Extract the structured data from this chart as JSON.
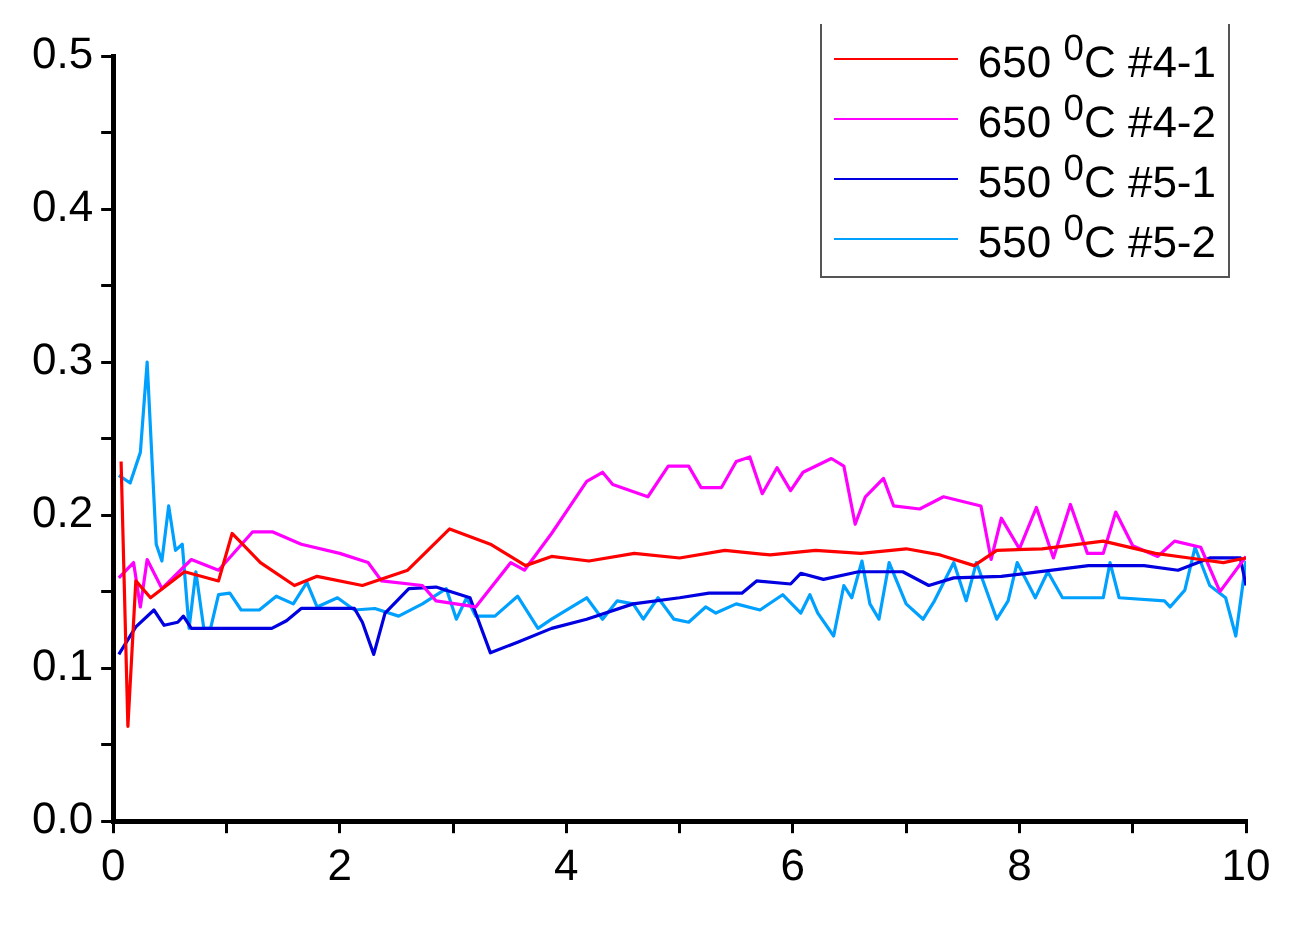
{
  "chart_data": {
    "type": "line",
    "xlim": [
      0,
      10
    ],
    "ylim": [
      0,
      0.5
    ],
    "xticks": [
      0,
      {
        "value": 1,
        "label": null
      },
      2,
      {
        "value": 3,
        "label": null
      },
      4,
      {
        "value": 5,
        "label": null
      },
      6,
      {
        "value": 7,
        "label": null
      },
      8,
      {
        "value": 9,
        "label": null
      },
      10
    ],
    "yticks": [
      {
        "value": 0,
        "label": "0.0"
      },
      {
        "value": 0.05,
        "label": null
      },
      0.1,
      {
        "value": 0.15,
        "label": null
      },
      0.2,
      {
        "value": 0.25,
        "label": null
      },
      0.3,
      {
        "value": 0.35,
        "label": null
      },
      0.4,
      {
        "value": 0.45,
        "label": null
      },
      0.5
    ],
    "grid": false,
    "legend": "top right",
    "line_style": "solid",
    "series": [
      {
        "name": "650 $^{0}$C #4-1",
        "color": "#ff0000",
        "x": [
          0.07,
          0.13,
          0.2,
          0.33,
          0.63,
          0.93,
          1.05,
          1.3,
          1.6,
          1.8,
          2.2,
          2.6,
          2.97,
          3.33,
          3.64,
          3.87,
          4.2,
          4.6,
          5.0,
          5.4,
          5.8,
          6.2,
          6.6,
          7.0,
          7.3,
          7.6,
          7.8,
          8.2,
          8.74,
          9.2,
          9.5,
          9.8,
          10
        ],
        "values": [
          0.235,
          0.062,
          0.157,
          0.146,
          0.163,
          0.157,
          0.188,
          0.169,
          0.154,
          0.16,
          0.154,
          0.164,
          0.191,
          0.181,
          0.167,
          0.173,
          0.17,
          0.175,
          0.172,
          0.177,
          0.174,
          0.177,
          0.175,
          0.178,
          0.174,
          0.167,
          0.177,
          0.178,
          0.183,
          0.175,
          0.172,
          0.169,
          0.172
        ]
      },
      {
        "name": "650 $^{0}$C #4-2",
        "color": "#ff00ff",
        "x": [
          0.05,
          0.18,
          0.24,
          0.3,
          0.43,
          0.69,
          0.93,
          1.23,
          1.41,
          1.66,
          2.0,
          2.25,
          2.37,
          2.73,
          2.85,
          3.2,
          3.51,
          3.63,
          3.87,
          4.18,
          4.32,
          4.41,
          4.72,
          4.9,
          5.08,
          5.19,
          5.37,
          5.5,
          5.62,
          5.73,
          5.86,
          5.98,
          6.09,
          6.34,
          6.45,
          6.55,
          6.64,
          6.8,
          6.89,
          7.12,
          7.33,
          7.66,
          7.75,
          7.84,
          8.0,
          8.15,
          8.3,
          8.45,
          8.6,
          8.74,
          8.85,
          9.0,
          9.22,
          9.37,
          9.6,
          9.77,
          10
        ],
        "values": [
          0.159,
          0.169,
          0.14,
          0.171,
          0.152,
          0.171,
          0.164,
          0.189,
          0.189,
          0.181,
          0.175,
          0.169,
          0.157,
          0.154,
          0.144,
          0.14,
          0.169,
          0.164,
          0.188,
          0.222,
          0.228,
          0.22,
          0.212,
          0.232,
          0.232,
          0.218,
          0.218,
          0.235,
          0.238,
          0.214,
          0.231,
          0.216,
          0.228,
          0.237,
          0.232,
          0.194,
          0.212,
          0.224,
          0.206,
          0.204,
          0.212,
          0.206,
          0.171,
          0.198,
          0.178,
          0.205,
          0.172,
          0.207,
          0.175,
          0.175,
          0.202,
          0.18,
          0.173,
          0.183,
          0.179,
          0.15,
          0.173
        ]
      },
      {
        "name": "550 $^{0}$C #5-1",
        "color": "#0000e0",
        "x": [
          0.05,
          0.2,
          0.36,
          0.45,
          0.57,
          0.62,
          0.69,
          1.4,
          1.53,
          1.66,
          2.13,
          2.2,
          2.3,
          2.4,
          2.61,
          2.85,
          3.15,
          3.33,
          3.57,
          3.87,
          4.18,
          4.59,
          5.0,
          5.26,
          5.55,
          5.68,
          5.98,
          6.07,
          6.27,
          6.58,
          6.97,
          7.2,
          7.42,
          7.84,
          8.61,
          9.1,
          9.4,
          9.68,
          9.95,
          10
        ],
        "values": [
          0.109,
          0.127,
          0.138,
          0.128,
          0.13,
          0.134,
          0.126,
          0.126,
          0.131,
          0.139,
          0.139,
          0.13,
          0.109,
          0.136,
          0.152,
          0.153,
          0.146,
          0.11,
          0.117,
          0.126,
          0.132,
          0.142,
          0.146,
          0.149,
          0.149,
          0.157,
          0.155,
          0.162,
          0.158,
          0.163,
          0.163,
          0.154,
          0.159,
          0.16,
          0.167,
          0.167,
          0.164,
          0.172,
          0.172,
          0.154
        ]
      },
      {
        "name": "550 $^{0}$C #5-2",
        "color": "#00a0ff",
        "x": [
          0.05,
          0.15,
          0.24,
          0.3,
          0.38,
          0.43,
          0.49,
          0.55,
          0.61,
          0.67,
          0.73,
          0.8,
          0.86,
          0.93,
          1.03,
          1.13,
          1.29,
          1.44,
          1.59,
          1.71,
          1.8,
          1.98,
          2.13,
          2.31,
          2.52,
          2.73,
          2.94,
          3.03,
          3.12,
          3.2,
          3.37,
          3.57,
          3.75,
          3.87,
          4.18,
          4.32,
          4.45,
          4.59,
          4.68,
          4.81,
          4.95,
          5.08,
          5.23,
          5.32,
          5.5,
          5.71,
          5.91,
          6.07,
          6.15,
          6.22,
          6.36,
          6.45,
          6.52,
          6.61,
          6.68,
          6.76,
          6.85,
          7.0,
          7.15,
          7.25,
          7.42,
          7.53,
          7.62,
          7.8,
          7.9,
          7.98,
          8.14,
          8.25,
          8.38,
          8.74,
          8.8,
          8.88,
          9.28,
          9.33,
          9.46,
          9.55,
          9.68,
          9.82,
          9.91,
          10
        ],
        "values": [
          0.226,
          0.221,
          0.241,
          0.3,
          0.181,
          0.17,
          0.206,
          0.177,
          0.181,
          0.126,
          0.163,
          0.126,
          0.126,
          0.148,
          0.149,
          0.138,
          0.138,
          0.147,
          0.142,
          0.156,
          0.14,
          0.146,
          0.138,
          0.139,
          0.134,
          0.142,
          0.152,
          0.132,
          0.146,
          0.134,
          0.134,
          0.147,
          0.126,
          0.132,
          0.146,
          0.132,
          0.144,
          0.142,
          0.132,
          0.146,
          0.132,
          0.13,
          0.14,
          0.136,
          0.142,
          0.138,
          0.148,
          0.136,
          0.148,
          0.136,
          0.121,
          0.154,
          0.146,
          0.17,
          0.142,
          0.132,
          0.169,
          0.142,
          0.132,
          0.144,
          0.169,
          0.144,
          0.169,
          0.132,
          0.144,
          0.169,
          0.146,
          0.163,
          0.146,
          0.146,
          0.169,
          0.146,
          0.144,
          0.14,
          0.151,
          0.179,
          0.154,
          0.146,
          0.121,
          0.17
        ]
      }
    ]
  }
}
